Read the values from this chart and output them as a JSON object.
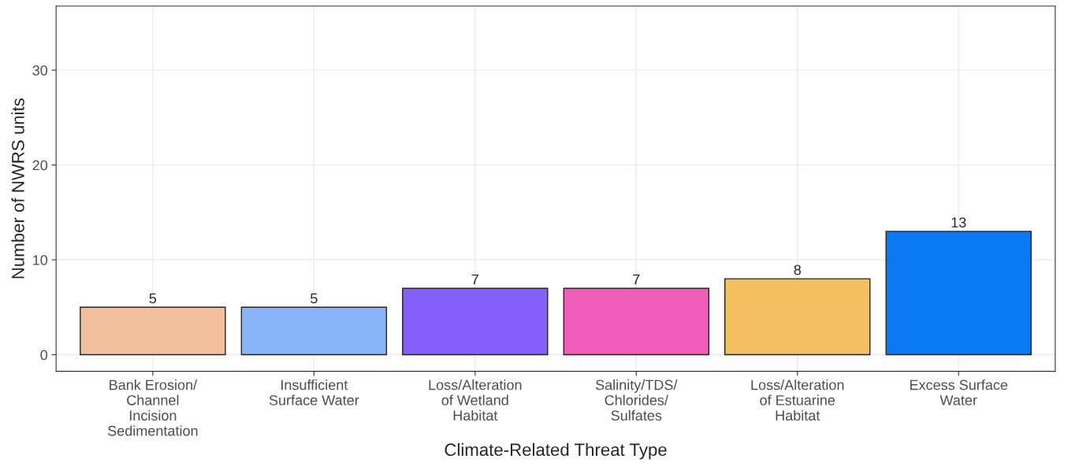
{
  "chart_data": {
    "type": "bar",
    "xlabel": "Climate-Related Threat Type",
    "ylabel": "Number of NWRS units",
    "categories": [
      "Bank Erosion/\nChannel\nIncision\nSedimentation",
      "Insufficient\nSurface Water",
      "Loss/Alteration\nof Wetland\nHabitat",
      "Salinity/TDS/\nChlorides/\nSulfates",
      "Loss/Alteration\nof Estuarine\nHabitat",
      "Excess Surface\nWater"
    ],
    "values": [
      5,
      5,
      7,
      7,
      8,
      13
    ],
    "colors": [
      "#f2c09c",
      "#8ab4f8",
      "#8660fa",
      "#f05db8",
      "#f2c060",
      "#0a78f0"
    ],
    "ylim": [
      -1.75,
      36.75
    ],
    "yticks": [
      0,
      10,
      20,
      30
    ],
    "grid": true,
    "data_labels": true
  }
}
